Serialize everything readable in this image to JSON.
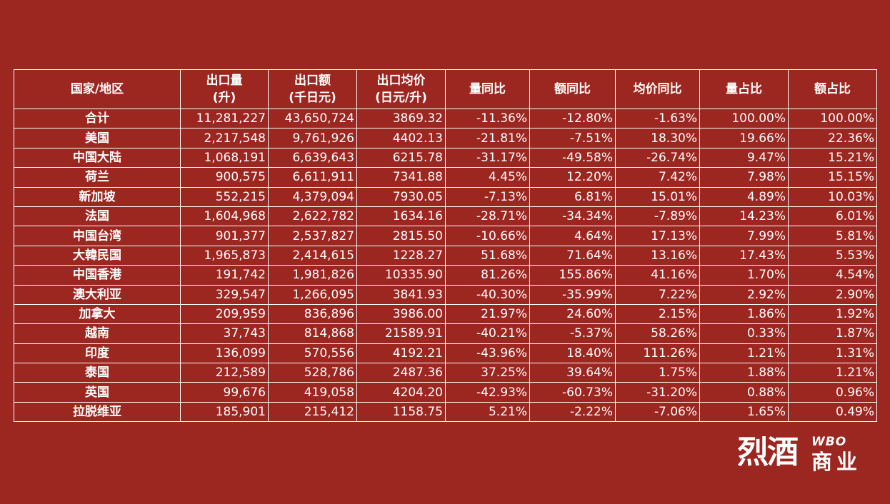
{
  "table": {
    "headers": [
      [
        "国家/地区"
      ],
      [
        "出口量",
        "(升)"
      ],
      [
        "出口额",
        "(千日元)"
      ],
      [
        "出口均价",
        "(日元/升)"
      ],
      [
        "量同比"
      ],
      [
        "额同比"
      ],
      [
        "均价同比"
      ],
      [
        "量占比"
      ],
      [
        "额占比"
      ]
    ],
    "rows": [
      [
        "合计",
        "11,281,227",
        "43,650,724",
        "3869.32",
        "-11.36%",
        "-12.80%",
        "-1.63%",
        "100.00%",
        "100.00%"
      ],
      [
        "美国",
        "2,217,548",
        "9,761,926",
        "4402.13",
        "-21.81%",
        "-7.51%",
        "18.30%",
        "19.66%",
        "22.36%"
      ],
      [
        "中国大陆",
        "1,068,191",
        "6,639,643",
        "6215.78",
        "-31.17%",
        "-49.58%",
        "-26.74%",
        "9.47%",
        "15.21%"
      ],
      [
        "荷兰",
        "900,575",
        "6,611,911",
        "7341.88",
        "4.45%",
        "12.20%",
        "7.42%",
        "7.98%",
        "15.15%"
      ],
      [
        "新加坡",
        "552,215",
        "4,379,094",
        "7930.05",
        "-7.13%",
        "6.81%",
        "15.01%",
        "4.89%",
        "10.03%"
      ],
      [
        "法国",
        "1,604,968",
        "2,622,782",
        "1634.16",
        "-28.71%",
        "-34.34%",
        "-7.89%",
        "14.23%",
        "6.01%"
      ],
      [
        "中国台湾",
        "901,377",
        "2,537,827",
        "2815.50",
        "-10.66%",
        "4.64%",
        "17.13%",
        "7.99%",
        "5.81%"
      ],
      [
        "大韓民国",
        "1,965,873",
        "2,414,615",
        "1228.27",
        "51.68%",
        "71.64%",
        "13.16%",
        "17.43%",
        "5.53%"
      ],
      [
        "中国香港",
        "191,742",
        "1,981,826",
        "10335.90",
        "81.26%",
        "155.86%",
        "41.16%",
        "1.70%",
        "4.54%"
      ],
      [
        "澳大利亚",
        "329,547",
        "1,266,095",
        "3841.93",
        "-40.30%",
        "-35.99%",
        "7.22%",
        "2.92%",
        "2.90%"
      ],
      [
        "加拿大",
        "209,959",
        "836,896",
        "3986.00",
        "21.97%",
        "24.60%",
        "2.15%",
        "1.86%",
        "1.92%"
      ],
      [
        "越南",
        "37,743",
        "814,868",
        "21589.91",
        "-40.21%",
        "-5.37%",
        "58.26%",
        "0.33%",
        "1.87%"
      ],
      [
        "印度",
        "136,099",
        "570,556",
        "4192.21",
        "-43.96%",
        "18.40%",
        "111.26%",
        "1.21%",
        "1.31%"
      ],
      [
        "泰国",
        "212,589",
        "528,786",
        "2487.36",
        "37.25%",
        "39.64%",
        "1.75%",
        "1.88%",
        "1.21%"
      ],
      [
        "英国",
        "99,676",
        "419,058",
        "4204.20",
        "-42.93%",
        "-60.73%",
        "-31.20%",
        "0.88%",
        "0.96%"
      ],
      [
        "拉脱维亚",
        "185,901",
        "215,412",
        "1158.75",
        "5.21%",
        "-2.22%",
        "-7.06%",
        "1.65%",
        "0.49%"
      ]
    ]
  },
  "logo": {
    "big": "烈酒",
    "latin": "WBO",
    "small": "商业"
  },
  "colors": {
    "background": "#9c2620",
    "text": "#ffffff",
    "border": "#ffffff"
  }
}
